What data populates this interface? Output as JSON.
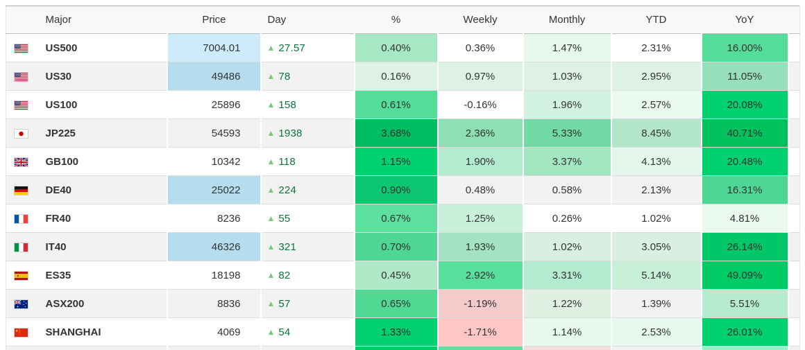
{
  "colors": {
    "header_bg": "#f8f8f8",
    "stripe_bg": "#f2f2f2",
    "row_border": "#dcdcdc",
    "header_border": "#bcbcbc",
    "table_top_border": "#ababab",
    "text": "#333333",
    "day_text": "#077539",
    "triangle_green": "#79c97d",
    "price_highlight_light": "#cdecf9",
    "price_highlight": "#b5ddee",
    "heat_green_max": "#00bd62",
    "heat_red": "#ffc6c6"
  },
  "table": {
    "headers": [
      "Major",
      "Price",
      "Day",
      "%",
      "Weekly",
      "Monthly",
      "YTD",
      "YoY"
    ],
    "up_triangle": "▲",
    "rows": [
      {
        "flag": "us",
        "name": "US500",
        "price": {
          "text": "7004.01",
          "bg": "#cdecf9"
        },
        "day": {
          "text": "27.57",
          "direction": "up"
        },
        "pct": {
          "text": "0.40%",
          "bg": "#a6e8c3"
        },
        "weekly": {
          "text": "0.36%",
          "bg": ""
        },
        "monthly": {
          "text": "1.47%",
          "bg": "#e6f8ee"
        },
        "ytd": {
          "text": "2.31%",
          "bg": ""
        },
        "yoy": {
          "text": "16.00%",
          "bg": "#54dc99"
        },
        "striped": false
      },
      {
        "flag": "us",
        "name": "US30",
        "price": {
          "text": "49486",
          "bg": "#b5ddee"
        },
        "day": {
          "text": "78",
          "direction": "up"
        },
        "pct": {
          "text": "0.16%",
          "bg": "#ddf1e4"
        },
        "weekly": {
          "text": "0.97%",
          "bg": "#ddf1e4"
        },
        "monthly": {
          "text": "1.03%",
          "bg": "#ddf1e4"
        },
        "ytd": {
          "text": "2.95%",
          "bg": "#ddf1e4"
        },
        "yoy": {
          "text": "11.05%",
          "bg": "#96dfba"
        },
        "striped": true
      },
      {
        "flag": "us",
        "name": "US100",
        "price": {
          "text": "25896",
          "bg": ""
        },
        "day": {
          "text": "158",
          "direction": "up"
        },
        "pct": {
          "text": "0.61%",
          "bg": "#54dc99"
        },
        "weekly": {
          "text": "-0.16%",
          "bg": ""
        },
        "monthly": {
          "text": "1.96%",
          "bg": "#d2f3e1"
        },
        "ytd": {
          "text": "2.57%",
          "bg": "#e9f9f0"
        },
        "yoy": {
          "text": "20.08%",
          "bg": "#00d170"
        },
        "striped": false
      },
      {
        "flag": "jp",
        "name": "JP225",
        "price": {
          "text": "54593",
          "bg": ""
        },
        "day": {
          "text": "1938",
          "direction": "up"
        },
        "pct": {
          "text": "3.68%",
          "bg": "#00bd62"
        },
        "weekly": {
          "text": "2.36%",
          "bg": "#8edfb4"
        },
        "monthly": {
          "text": "5.33%",
          "bg": "#70d9a4"
        },
        "ytd": {
          "text": "8.45%",
          "bg": "#b3e6c9"
        },
        "yoy": {
          "text": "40.71%",
          "bg": "#00c25d"
        },
        "striped": true
      },
      {
        "flag": "gb",
        "name": "GB100",
        "price": {
          "text": "10342",
          "bg": ""
        },
        "day": {
          "text": "118",
          "direction": "up"
        },
        "pct": {
          "text": "1.15%",
          "bg": "#00d170"
        },
        "weekly": {
          "text": "1.90%",
          "bg": "#b2ebcf"
        },
        "monthly": {
          "text": "3.37%",
          "bg": "#a3e6c2"
        },
        "ytd": {
          "text": "4.13%",
          "bg": "#e4f7ec"
        },
        "yoy": {
          "text": "20.48%",
          "bg": "#00d170"
        },
        "striped": false
      },
      {
        "flag": "de",
        "name": "DE40",
        "price": {
          "text": "25022",
          "bg": "#b5ddee"
        },
        "day": {
          "text": "224",
          "direction": "up"
        },
        "pct": {
          "text": "0.90%",
          "bg": "#0cc671"
        },
        "weekly": {
          "text": "0.48%",
          "bg": ""
        },
        "monthly": {
          "text": "0.58%",
          "bg": ""
        },
        "ytd": {
          "text": "2.13%",
          "bg": ""
        },
        "yoy": {
          "text": "16.31%",
          "bg": "#4ed694"
        },
        "striped": true
      },
      {
        "flag": "fr",
        "name": "FR40",
        "price": {
          "text": "8236",
          "bg": ""
        },
        "day": {
          "text": "55",
          "direction": "up"
        },
        "pct": {
          "text": "0.67%",
          "bg": "#5be09e"
        },
        "weekly": {
          "text": "1.25%",
          "bg": "#c9f1da"
        },
        "monthly": {
          "text": "0.26%",
          "bg": ""
        },
        "ytd": {
          "text": "1.02%",
          "bg": ""
        },
        "yoy": {
          "text": "4.81%",
          "bg": "#e9f9f0"
        },
        "striped": false
      },
      {
        "flag": "it",
        "name": "IT40",
        "price": {
          "text": "46326",
          "bg": "#b5ddee"
        },
        "day": {
          "text": "321",
          "direction": "up"
        },
        "pct": {
          "text": "0.70%",
          "bg": "#4ed692"
        },
        "weekly": {
          "text": "1.93%",
          "bg": "#a3e3c2"
        },
        "monthly": {
          "text": "1.02%",
          "bg": "#d9efe1"
        },
        "ytd": {
          "text": "3.05%",
          "bg": "#d9efe1"
        },
        "yoy": {
          "text": "26.14%",
          "bg": "#00c767"
        },
        "striped": true
      },
      {
        "flag": "es",
        "name": "ES35",
        "price": {
          "text": "18198",
          "bg": ""
        },
        "day": {
          "text": "82",
          "direction": "up"
        },
        "pct": {
          "text": "0.45%",
          "bg": "#aeeac8"
        },
        "weekly": {
          "text": "2.92%",
          "bg": "#59df9c"
        },
        "monthly": {
          "text": "3.31%",
          "bg": "#b2ebcf"
        },
        "ytd": {
          "text": "5.14%",
          "bg": "#c6f0d8"
        },
        "yoy": {
          "text": "49.09%",
          "bg": "#00cc66"
        },
        "striped": false
      },
      {
        "flag": "au",
        "name": "ASX200",
        "price": {
          "text": "8836",
          "bg": ""
        },
        "day": {
          "text": "57",
          "direction": "up"
        },
        "pct": {
          "text": "0.65%",
          "bg": "#4fd993"
        },
        "weekly": {
          "text": "-1.19%",
          "bg": "#f4caca"
        },
        "monthly": {
          "text": "1.22%",
          "bg": "#dfefe2"
        },
        "ytd": {
          "text": "1.39%",
          "bg": ""
        },
        "yoy": {
          "text": "5.51%",
          "bg": "#b7ebcd"
        },
        "striped": true
      },
      {
        "flag": "cn",
        "name": "SHANGHAI",
        "price": {
          "text": "4069",
          "bg": ""
        },
        "day": {
          "text": "54",
          "direction": "up"
        },
        "pct": {
          "text": "1.33%",
          "bg": "#00d06e"
        },
        "weekly": {
          "text": "-1.71%",
          "bg": "#ffc6c6"
        },
        "monthly": {
          "text": "1.14%",
          "bg": "#e7f8ee"
        },
        "ytd": {
          "text": "2.53%",
          "bg": "#e7f8ee"
        },
        "yoy": {
          "text": "26.01%",
          "bg": "#00d06e"
        },
        "striped": false
      }
    ],
    "partial_row": {
      "striped": true,
      "pct_bg": "#00cc66",
      "weekly_bg": "#62dd9d",
      "monthly_bg": "#f3dcdc",
      "ytd_bg": "",
      "yoy_bg": "#a9e7c5"
    }
  }
}
